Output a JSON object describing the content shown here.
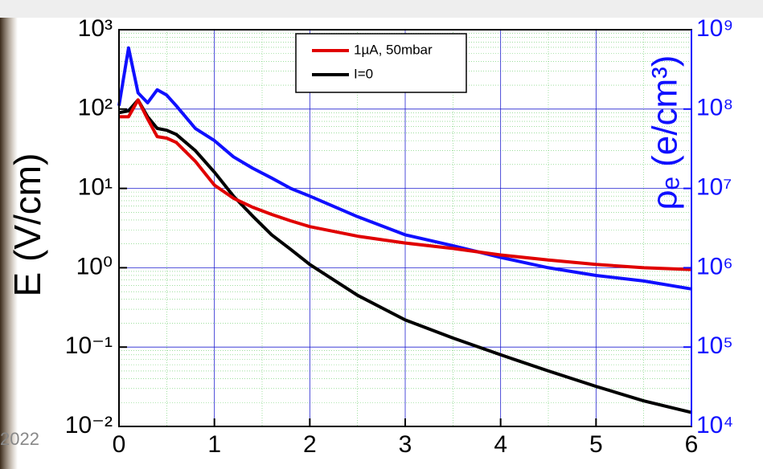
{
  "chart_data": {
    "type": "line",
    "x_label": "",
    "y_label": "E (V/cm)",
    "y2_label": "ρₑ (e/cm³)",
    "annotations": [
      "2022"
    ],
    "xlim": [
      0,
      6
    ],
    "xticks": [
      0,
      1,
      2,
      3,
      4,
      5,
      6
    ],
    "ylim": [
      0.01,
      1000
    ],
    "yticks": [
      {
        "value": 1000,
        "label": "10³"
      },
      {
        "value": 100,
        "label": "10²"
      },
      {
        "value": 10,
        "label": "10¹"
      },
      {
        "value": 1,
        "label": "10⁰"
      },
      {
        "value": 0.1,
        "label": "10⁻¹"
      },
      {
        "value": 0.01,
        "label": "10⁻²"
      }
    ],
    "y2lim": [
      10000,
      1000000000
    ],
    "y2ticks": [
      {
        "value": 1000000000,
        "label": "10⁹"
      },
      {
        "value": 100000000,
        "label": "10⁸"
      },
      {
        "value": 10000000,
        "label": "10⁷"
      },
      {
        "value": 1000000,
        "label": "10⁶"
      },
      {
        "value": 100000,
        "label": "10⁵"
      },
      {
        "value": 10000,
        "label": "10⁴"
      }
    ],
    "log_y": true,
    "log_y2": true,
    "grid": true,
    "legend": "upper center",
    "x": [
      0,
      0.1,
      0.2,
      0.3,
      0.4,
      0.5,
      0.6,
      0.8,
      1.0,
      1.2,
      1.4,
      1.6,
      1.8,
      2.0,
      2.5,
      3.0,
      3.5,
      4.0,
      4.5,
      5.0,
      5.5,
      6.0
    ],
    "series": [
      {
        "name": "1µA, 50mbar",
        "color": "#e00000",
        "axis": "y",
        "values": [
          80,
          80,
          130,
          75,
          45,
          43,
          38,
          22,
          11,
          7.5,
          5.8,
          4.7,
          3.9,
          3.3,
          2.5,
          2.05,
          1.75,
          1.45,
          1.25,
          1.1,
          1.0,
          0.95
        ]
      },
      {
        "name": "I=0",
        "color": "#000000",
        "axis": "y",
        "values": [
          90,
          95,
          130,
          80,
          57,
          54,
          48,
          30,
          16,
          8,
          4.5,
          2.6,
          1.7,
          1.1,
          0.45,
          0.22,
          0.13,
          0.08,
          0.05,
          0.032,
          0.021,
          0.015
        ]
      },
      {
        "name": "",
        "color": "#1010ff",
        "axis": "y2",
        "values": [
          110000000,
          590000000,
          160000000,
          120000000,
          175000000,
          150000000,
          110000000,
          57000000,
          40000000,
          25000000,
          18000000,
          13500000,
          10000000,
          8000000,
          4400000,
          2600000,
          1900000,
          1350000,
          1000000,
          800000,
          680000,
          540000
        ]
      }
    ]
  }
}
